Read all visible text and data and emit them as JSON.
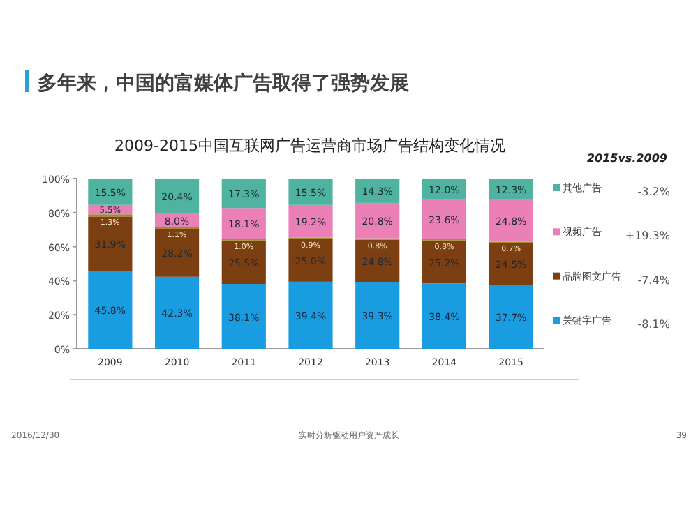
{
  "chart_data": {
    "type": "bar",
    "stacked": true,
    "legend": "right",
    "grid": false,
    "title": "多年来，中国的富媒体广告取得了强势发展",
    "subtitle": "2009-2015中国互联网广告运营商市场广告结构变化情况",
    "categories": [
      "2009",
      "2010",
      "2011",
      "2012",
      "2013",
      "2014",
      "2015"
    ],
    "ylim": [
      0,
      100
    ],
    "yticks": [
      {
        "value": 0,
        "label": "0%"
      },
      {
        "value": 20,
        "label": "20%"
      },
      {
        "value": 40,
        "label": "40%"
      },
      {
        "value": 60,
        "label": "60%"
      },
      {
        "value": 80,
        "label": "80%"
      },
      {
        "value": 100,
        "label": "100%"
      }
    ],
    "series": [
      {
        "name": "关键字广告",
        "color": "#1a9de0",
        "values": [
          45.8,
          42.3,
          38.1,
          39.4,
          39.3,
          38.4,
          37.7
        ],
        "value_labels": [
          "45.8%",
          "42.3%",
          "38.1%",
          "39.4%",
          "39.3%",
          "38.4%",
          "37.7%"
        ]
      },
      {
        "name": "品牌图文广告",
        "color": "#7b3f12",
        "values": [
          31.9,
          28.2,
          25.5,
          25.0,
          24.8,
          25.2,
          24.5
        ],
        "value_labels": [
          "31.9%",
          "28.2%",
          "25.5%",
          "25.0%",
          "24.8%",
          "25.2%",
          "24.5%"
        ]
      },
      {
        "color": "#a08c28",
        "values": [
          1.3,
          1.1,
          1.0,
          0.9,
          0.8,
          0.8,
          0.7
        ],
        "value_labels": [
          "1.3%",
          "1.1%",
          "1.0%",
          "0.9%",
          "0.8%",
          "0.8%",
          "0.7%"
        ]
      },
      {
        "name": "视频广告",
        "color": "#ea80b5",
        "values": [
          5.5,
          8.0,
          18.1,
          19.2,
          20.8,
          23.6,
          24.8
        ],
        "value_labels": [
          "5.5%",
          "8.0%",
          "18.1%",
          "19.2%",
          "20.8%",
          "23.6%",
          "24.8%"
        ]
      },
      {
        "name": "其他广告",
        "color": "#4fb3a0",
        "values": [
          15.5,
          20.4,
          17.3,
          15.5,
          14.3,
          12.0,
          12.3
        ],
        "value_labels": [
          "15.5%",
          "20.4%",
          "17.3%",
          "15.5%",
          "14.3%",
          "12.0%",
          "12.3%"
        ]
      }
    ],
    "annotations": [
      "2015vs.2009",
      "-3.2%",
      "+19.3%",
      "-7.4%",
      "-8.1%",
      "2016/12/30",
      "实时分析驱动用户资产成长",
      "39"
    ]
  }
}
